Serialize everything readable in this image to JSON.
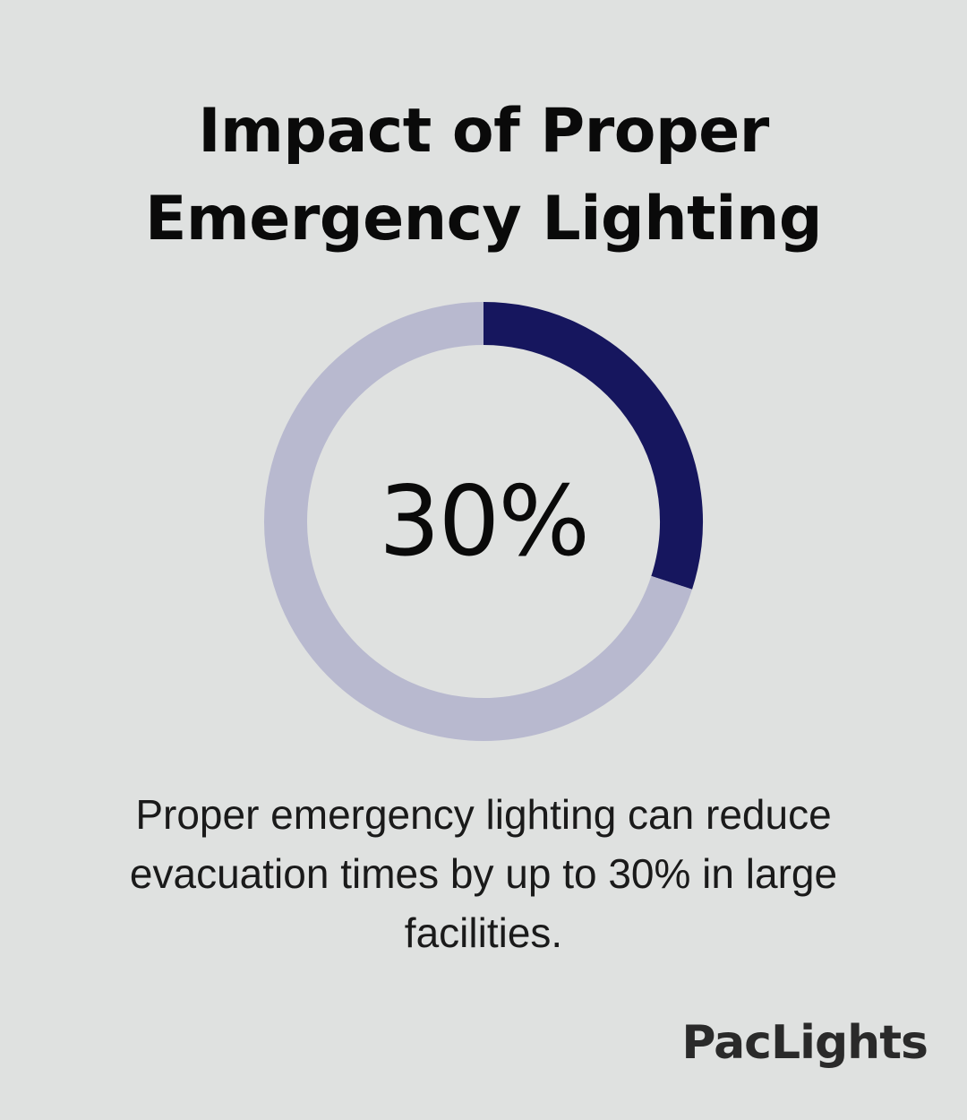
{
  "title_lines": [
    "Impact of Proper",
    "Emergency Lighting"
  ],
  "chart_data": {
    "type": "pie",
    "variant": "donut",
    "values": [
      30,
      70
    ],
    "center_label": "30%",
    "colors": [
      "#16165e",
      "#b8b9cf"
    ],
    "start": "top",
    "direction": "clockwise"
  },
  "description": "Proper emergency lighting can reduce evacuation times by up to 30% in large facilities.",
  "logo": "PacLights"
}
